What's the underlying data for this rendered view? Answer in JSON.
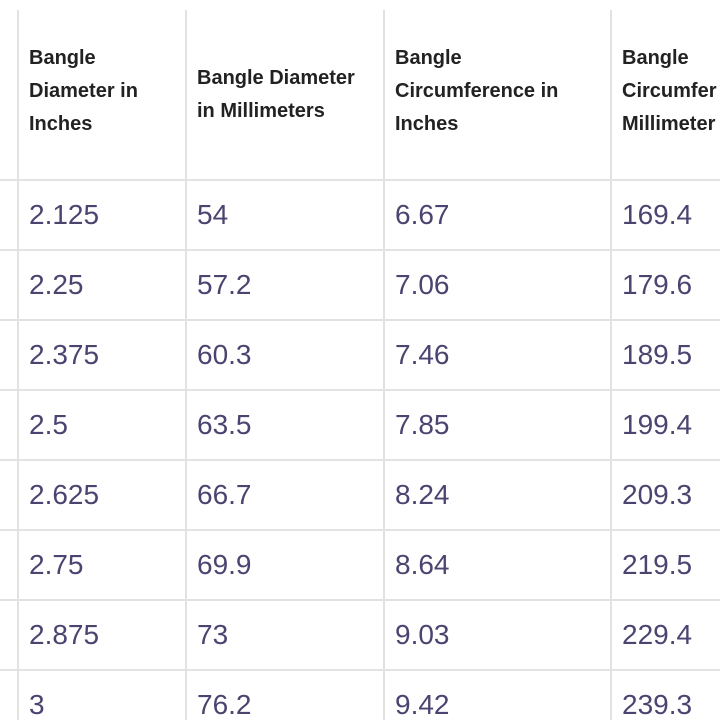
{
  "table": {
    "headers": [
      [
        "Bangle",
        "Diameter in",
        "Inches"
      ],
      [
        "Bangle Diameter",
        "in Millimeters"
      ],
      [
        "Bangle",
        "Circumference in",
        "Inches"
      ],
      [
        "Bangle",
        "Circumfer",
        "Millimeter"
      ]
    ],
    "rows": [
      [
        "2.125",
        "54",
        "6.67",
        "169.4"
      ],
      [
        "2.25",
        "57.2",
        "7.06",
        "179.6"
      ],
      [
        "2.375",
        "60.3",
        "7.46",
        "189.5"
      ],
      [
        "2.5",
        "63.5",
        "7.85",
        "199.4"
      ],
      [
        "2.625",
        "66.7",
        "8.24",
        "209.3"
      ],
      [
        "2.75",
        "69.9",
        "8.64",
        "219.5"
      ],
      [
        "2.875",
        "73",
        "9.03",
        "229.4"
      ],
      [
        "3",
        "76.2",
        "9.42",
        "239.3"
      ]
    ]
  },
  "colors": {
    "header_text": "#222222",
    "cell_text": "#4a4570",
    "grid_line": "#e2e2e2",
    "background": "#ffffff"
  }
}
